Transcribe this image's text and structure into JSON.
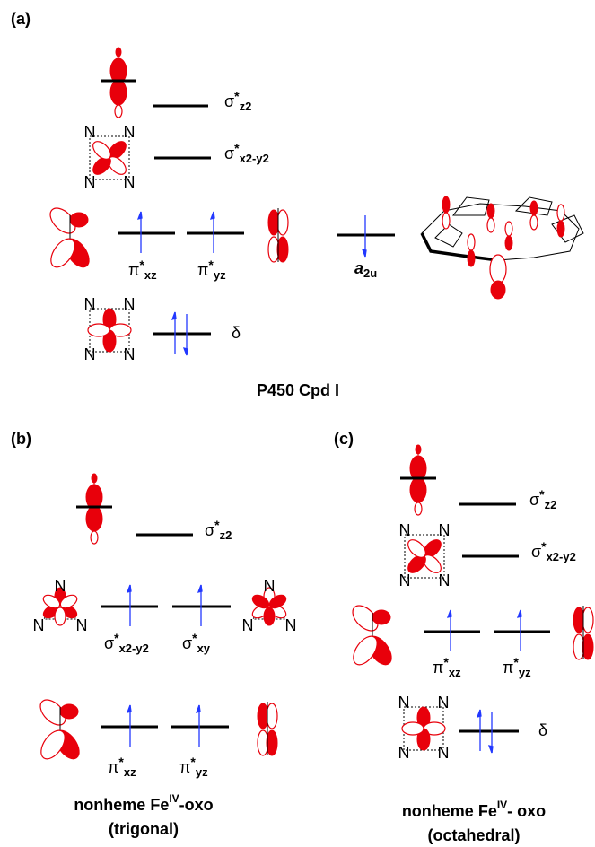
{
  "panels": [
    {
      "label": "(a)",
      "levels": [
        {
          "symbol": "σ",
          "sup": "*",
          "sub": "z2"
        },
        {
          "symbol": "σ",
          "sup": "*",
          "sub": "x2-y2"
        },
        {
          "symbol": "π",
          "sup": "*",
          "sub": "xz"
        },
        {
          "symbol": "π",
          "sup": "*",
          "sub": "yz"
        },
        {
          "symbol": "a",
          "sub": "2u"
        },
        {
          "symbol": "δ"
        }
      ],
      "icons": [
        {
          "atoms": [
            "N",
            "N",
            "N",
            "N"
          ]
        },
        {
          "atoms": [
            "N",
            "N",
            "N",
            "N"
          ]
        }
      ],
      "title": {
        "text": "P450 Cpd I"
      }
    },
    {
      "label": "(b)",
      "levels": [
        {
          "symbol": "σ",
          "sup": "*",
          "sub": "z2"
        },
        {
          "symbol": "σ",
          "sup": "*",
          "sub": "x2-y2"
        },
        {
          "symbol": "σ",
          "sup": "*",
          "sub": "xy"
        },
        {
          "symbol": "π",
          "sup": "*",
          "sub": "xz"
        },
        {
          "symbol": "π",
          "sup": "*",
          "sub": "yz"
        }
      ],
      "icons": [
        {
          "atoms": [
            "N",
            "N",
            "N"
          ]
        },
        {
          "atoms": [
            "N",
            "N",
            "N"
          ]
        }
      ],
      "title": {
        "text": "nonheme Fe",
        "sup": "IV",
        "tail": "-oxo",
        "line2": "(trigonal)"
      }
    },
    {
      "label": "(c)",
      "levels": [
        {
          "symbol": "σ",
          "sup": "*",
          "sub": "z2"
        },
        {
          "symbol": "σ",
          "sup": "*",
          "sub": "x2-y2"
        },
        {
          "symbol": "π",
          "sup": "*",
          "sub": "xz"
        },
        {
          "symbol": "π",
          "sup": "*",
          "sub": "yz"
        },
        {
          "symbol": "δ"
        }
      ],
      "icons": [
        {
          "atoms": [
            "N",
            "N",
            "N",
            "N"
          ]
        },
        {
          "atoms": [
            "N",
            "N",
            "N",
            "N"
          ]
        }
      ],
      "title": {
        "text": "nonheme Fe",
        "sup": "IV",
        "tail": "- oxo",
        "line2": "(octahedral)"
      }
    }
  ]
}
